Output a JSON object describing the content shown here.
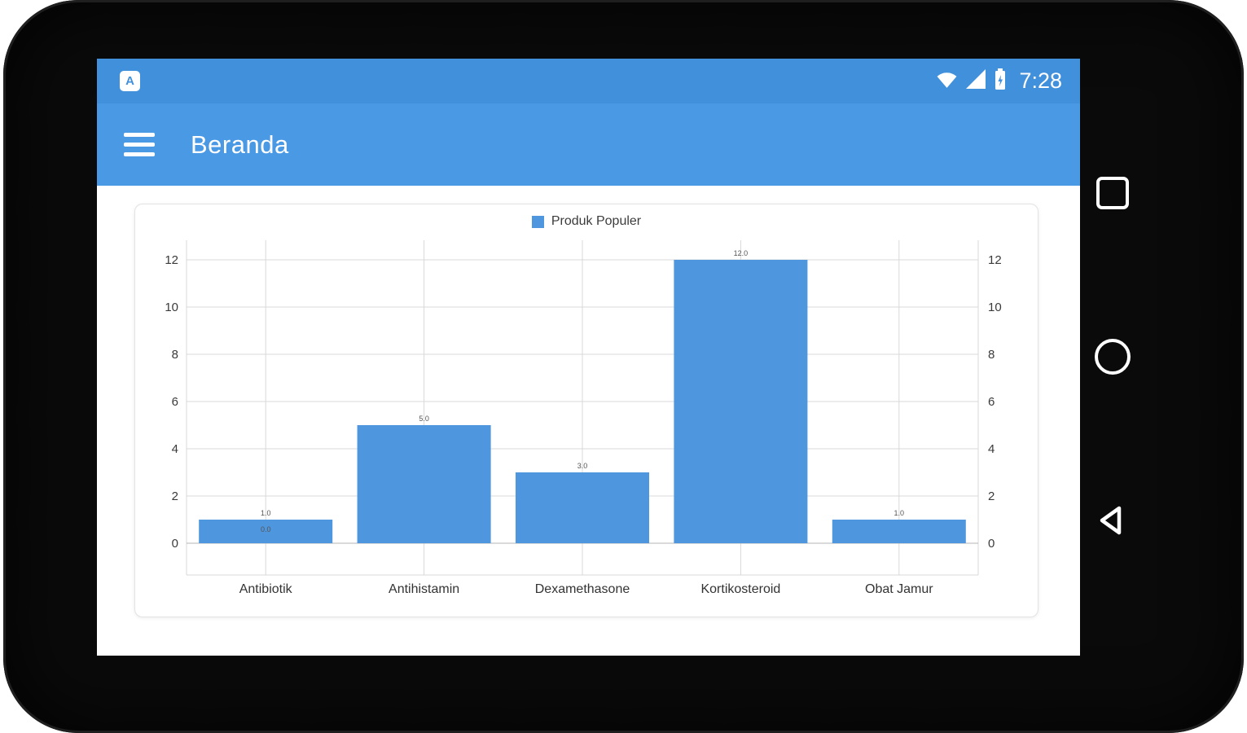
{
  "status_bar": {
    "app_badge": "A",
    "time": "7:28",
    "icons": [
      "wifi-icon",
      "signal-icon",
      "battery-charging-icon"
    ]
  },
  "app_bar": {
    "title": "Beranda",
    "color": "#4a99e4"
  },
  "nav_buttons": [
    "recents",
    "home",
    "back"
  ],
  "chart_data": {
    "type": "bar",
    "title": "",
    "xlabel": "",
    "ylabel": "",
    "legend": [
      {
        "label": "Produk Populer",
        "color": "#4e96de"
      }
    ],
    "legend_position": "top",
    "categories": [
      "Antibiotik",
      "Antihistamin",
      "Dexamethasone",
      "Kortikosteroid",
      "Obat Jamur"
    ],
    "series": [
      {
        "name": "Produk Populer",
        "values": [
          1,
          5,
          3,
          12,
          1
        ]
      }
    ],
    "value_labels": [
      "1.0",
      "5.0",
      "3.0",
      "12.0",
      "1.0"
    ],
    "extra_value_label": {
      "category_index": 0,
      "text": "0.0"
    },
    "y_ticks": [
      0,
      2,
      4,
      6,
      8,
      10,
      12
    ],
    "ylim": [
      0,
      13
    ],
    "y_axis_sides": [
      "left",
      "right"
    ],
    "grid": true,
    "bar_color": "#4e96de"
  }
}
